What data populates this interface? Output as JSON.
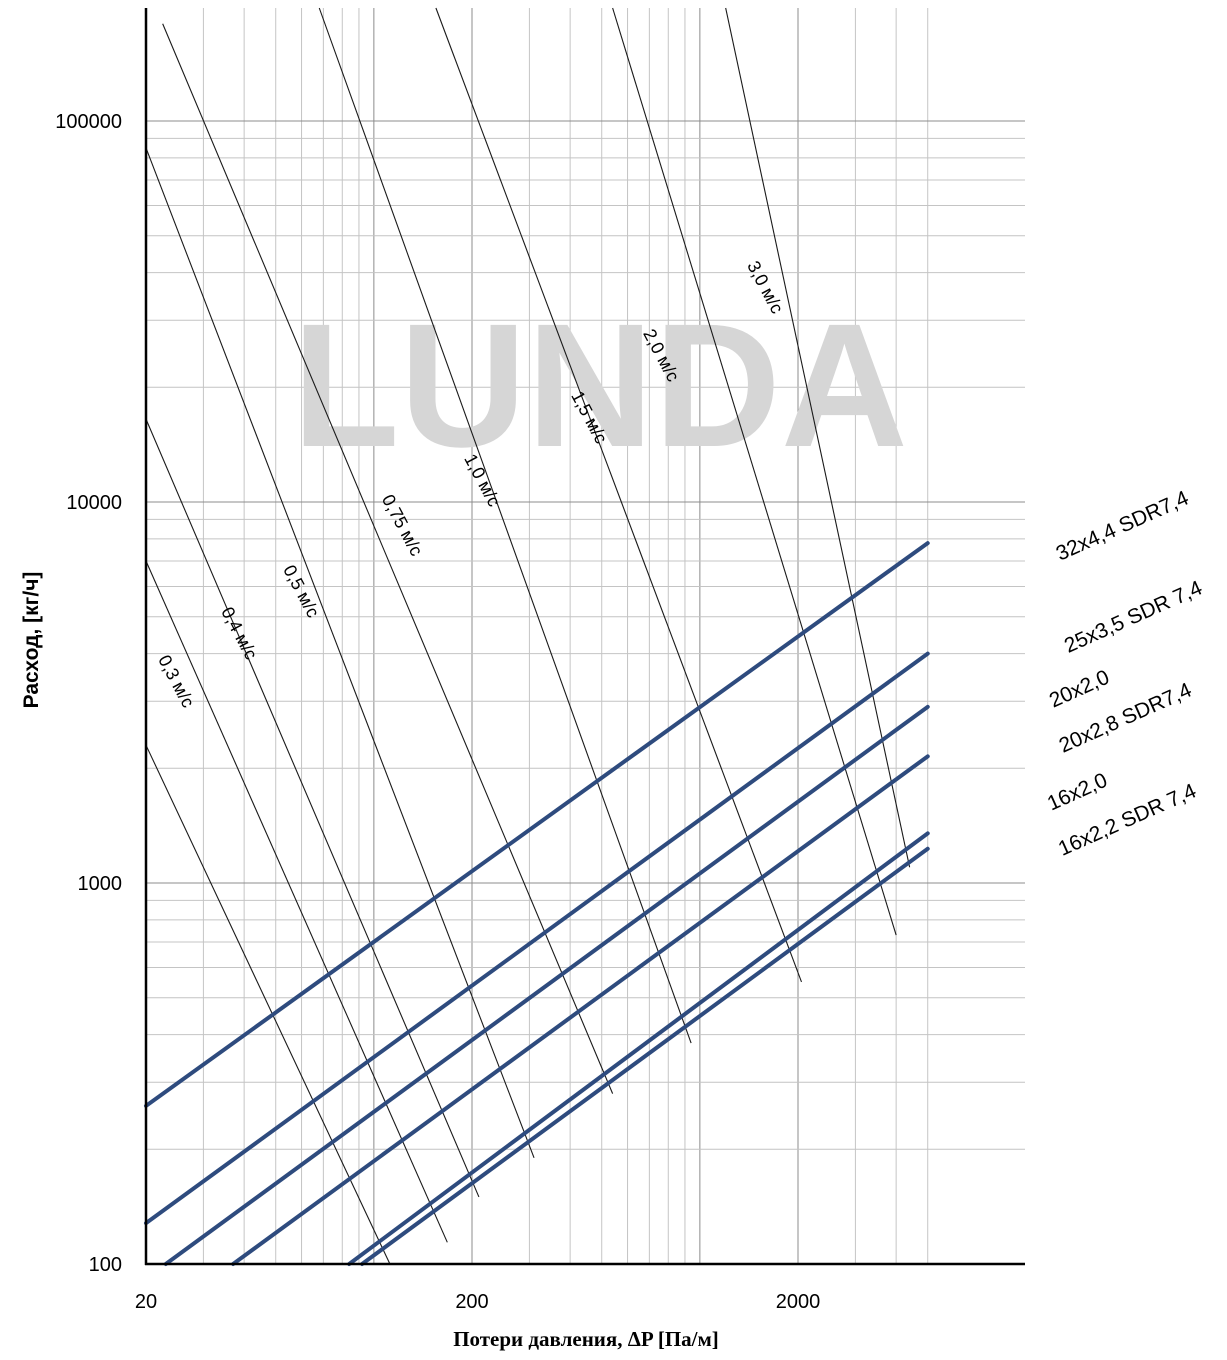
{
  "chart_data": {
    "type": "line",
    "title": "",
    "xlabel": "Потери давления, ΔP [Па/м]",
    "ylabel": "Расход, [кг/ч]",
    "x_scale": "log",
    "y_scale": "log",
    "xlim": [
      20,
      5000
    ],
    "ylim": [
      100,
      200000
    ],
    "x_ticks": [
      "20",
      "200",
      "2000"
    ],
    "y_ticks": [
      "100",
      "1000",
      "10000",
      "100000"
    ],
    "grid": true,
    "watermark": "LUNDA",
    "pipe_series": [
      {
        "name": "32x4,4 SDR7,4",
        "x": [
          20,
          5000
        ],
        "y": [
          260,
          7800
        ]
      },
      {
        "name": "25x3,5 SDR 7,4",
        "x": [
          20,
          5000
        ],
        "y": [
          128,
          4000
        ]
      },
      {
        "name": "20x2,0",
        "x": [
          23,
          5000
        ],
        "y": [
          100,
          2900
        ]
      },
      {
        "name": "20x2,8 SDR7,4",
        "x": [
          37,
          5000
        ],
        "y": [
          100,
          2150
        ]
      },
      {
        "name": "16x2,0",
        "x": [
          84,
          5000
        ],
        "y": [
          100,
          1350
        ]
      },
      {
        "name": "16x2,2 SDR 7,4",
        "x": [
          92,
          5000
        ],
        "y": [
          100,
          1230
        ]
      }
    ],
    "velocity_series": [
      {
        "name": "0,3 м/с",
        "x": [
          20,
          112
        ],
        "y": [
          2300,
          100
        ]
      },
      {
        "name": "0,4 м/с",
        "x": [
          20,
          168
        ],
        "y": [
          7000,
          114
        ]
      },
      {
        "name": "0,5 м/с",
        "x": [
          20,
          210
        ],
        "y": [
          16500,
          150
        ]
      },
      {
        "name": "0,75 м/с",
        "x": [
          20,
          310
        ],
        "y": [
          85000,
          190
        ]
      },
      {
        "name": "1,0 м/с",
        "x": [
          22.5,
          540
        ],
        "y": [
          180000,
          280
        ]
      },
      {
        "name": "1,5 м/с",
        "x": [
          68,
          940
        ],
        "y": [
          200000,
          380
        ]
      },
      {
        "name": "2,0 м/с",
        "x": [
          155,
          2050
        ],
        "y": [
          200000,
          550
        ]
      },
      {
        "name": "3,0 м/с",
        "x": [
          540,
          4000
        ],
        "y": [
          200000,
          730
        ]
      },
      {
        "name": "3,0 м/с (to 32x4,4)",
        "x": [
          1200,
          4400
        ],
        "y": [
          200000,
          1100
        ]
      }
    ],
    "velocity_labels": [
      {
        "text": "0,3 м/с"
      },
      {
        "text": "0,4 м/с"
      },
      {
        "text": "0,5 м/с"
      },
      {
        "text": "0,75 м/с"
      },
      {
        "text": "1,0 м/с"
      },
      {
        "text": "1,5 м/с"
      },
      {
        "text": "2,0 м/с"
      },
      {
        "text": "3,0 м/с"
      }
    ],
    "colors": {
      "pipe_line": "#2e4b7e",
      "velocity_line": "#1a1a1a",
      "grid_major": "#8c8c8c",
      "grid_minor": "#c4c4c4",
      "watermark": "#d6d6d6"
    }
  }
}
